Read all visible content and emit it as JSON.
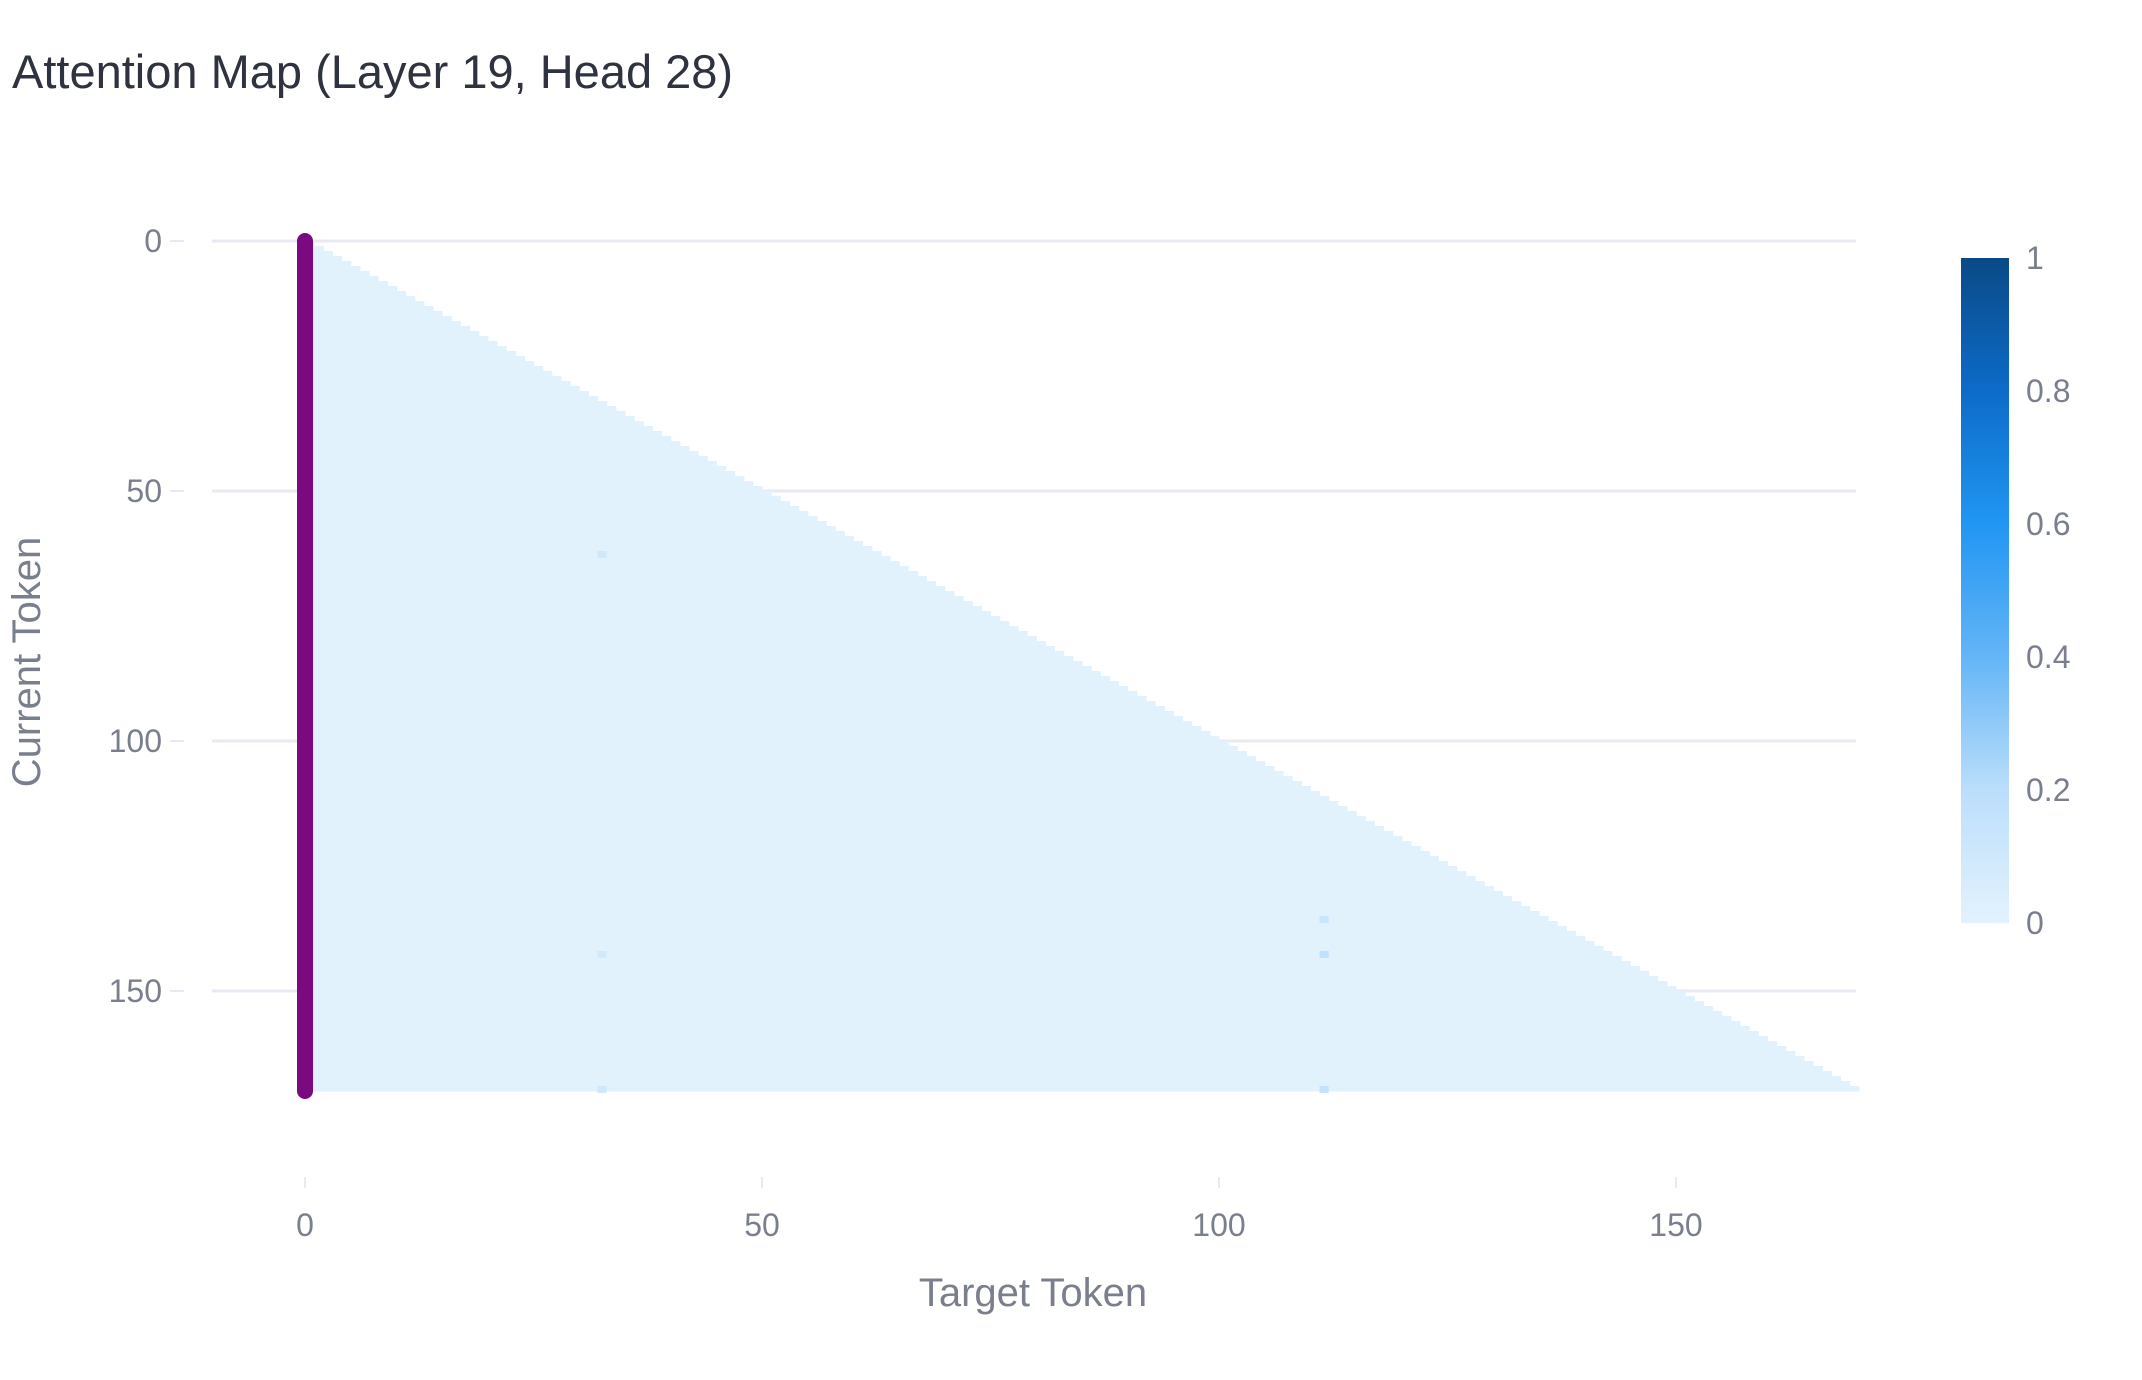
{
  "chart_data": {
    "type": "heatmap",
    "title": "Attention Map (Layer 19, Head 28)",
    "xlabel": "Target Token",
    "ylabel": "Current Token",
    "n_tokens": 170,
    "x_range": [
      -12,
      170
    ],
    "y_range": [
      0,
      170
    ],
    "y_reversed": true,
    "xticks": [
      0,
      50,
      100,
      150
    ],
    "yticks": [
      0,
      50,
      100,
      150
    ],
    "grid": true,
    "mask": "lower-triangular (causal)",
    "base_value": 0.03,
    "highlight_column": {
      "target_token": 0,
      "value": 1.0,
      "color": "#7b0a80",
      "description": "attention sink"
    },
    "notable_cells": [
      {
        "current": 62,
        "target": 32,
        "value": 0.06
      },
      {
        "current": 142,
        "target": 32,
        "value": 0.05
      },
      {
        "current": 169,
        "target": 32,
        "value": 0.06
      },
      {
        "current": 135,
        "target": 111,
        "value": 0.1
      },
      {
        "current": 142,
        "target": 111,
        "value": 0.14
      },
      {
        "current": 169,
        "target": 111,
        "value": 0.12
      }
    ],
    "colorbar": {
      "min": 0,
      "max": 1,
      "ticks": [
        "0",
        "0.2",
        "0.4",
        "0.6",
        "0.8",
        "1"
      ],
      "colors": [
        "#e3f2fd",
        "#bbdefb",
        "#64b5f6",
        "#2196f3",
        "#0d6bc9",
        "#0a4a86"
      ]
    },
    "colors": {
      "cell_base": "#e1f2fc",
      "grid": "#e9e8f5",
      "text": "#7a7f8e",
      "title": "#2f3340"
    }
  }
}
